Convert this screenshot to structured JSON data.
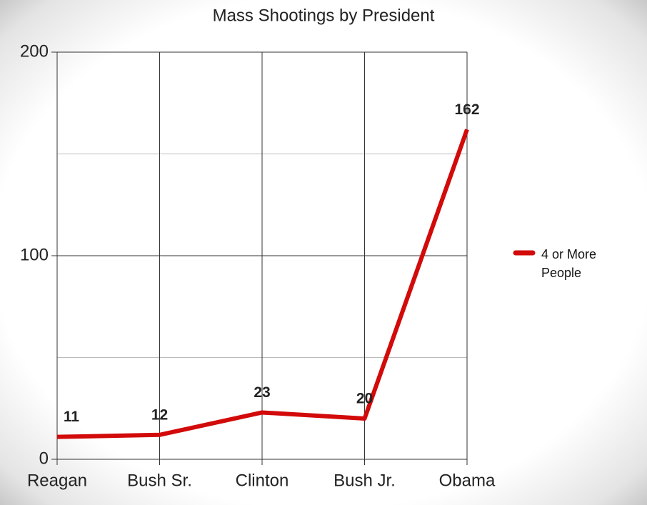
{
  "chart_data": {
    "type": "line",
    "title": "Mass Shootings by President",
    "categories": [
      "Reagan",
      "Bush Sr.",
      "Clinton",
      "Bush Jr.",
      "Obama"
    ],
    "series": [
      {
        "name": "4 or More People",
        "color": "#d20a0a",
        "values": [
          11,
          12,
          23,
          20,
          162
        ]
      }
    ],
    "ylim": [
      0,
      200
    ],
    "yticks": [
      0,
      100,
      200
    ],
    "minor_yticks": [
      50,
      150
    ],
    "grid": true,
    "data_labels": true,
    "legend": "right"
  }
}
